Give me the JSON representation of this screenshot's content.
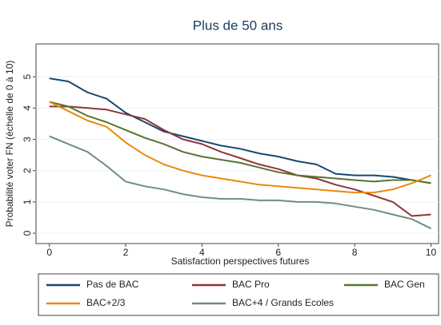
{
  "chart_data": {
    "type": "line",
    "title": "Plus de 50 ans",
    "x_label": "Satisfaction perspectives futures",
    "y_label": "Probabilité voter FN (échelle de 0 à 10)",
    "x": [
      0,
      0.5,
      1,
      1.5,
      2,
      2.5,
      3,
      3.5,
      4,
      4.5,
      5,
      5.5,
      6,
      6.5,
      7,
      7.5,
      8,
      8.5,
      9,
      9.5,
      10
    ],
    "series": [
      {
        "name": "Pas de BAC",
        "color": "#1a476f",
        "values": [
          4.95,
          4.85,
          4.5,
          4.3,
          3.85,
          3.55,
          3.25,
          3.1,
          2.95,
          2.8,
          2.7,
          2.55,
          2.45,
          2.3,
          2.2,
          1.9,
          1.85,
          1.85,
          1.8,
          1.7,
          1.6
        ]
      },
      {
        "name": "BAC Pro",
        "color": "#90353b",
        "values": [
          4.05,
          4.05,
          4.0,
          3.95,
          3.8,
          3.65,
          3.3,
          3.0,
          2.85,
          2.6,
          2.4,
          2.2,
          2.05,
          1.85,
          1.75,
          1.55,
          1.4,
          1.2,
          1.0,
          0.55,
          0.6
        ]
      },
      {
        "name": "BAC Gen",
        "color": "#55752f",
        "values": [
          4.2,
          4.05,
          3.75,
          3.55,
          3.3,
          3.05,
          2.85,
          2.6,
          2.45,
          2.35,
          2.25,
          2.1,
          1.95,
          1.85,
          1.8,
          1.75,
          1.7,
          1.65,
          1.7,
          1.7,
          1.6
        ]
      },
      {
        "name": "BAC+2/3",
        "color": "#e8890c",
        "values": [
          4.2,
          3.9,
          3.6,
          3.4,
          2.9,
          2.5,
          2.2,
          2.0,
          1.85,
          1.75,
          1.65,
          1.55,
          1.5,
          1.45,
          1.4,
          1.35,
          1.3,
          1.3,
          1.4,
          1.6,
          1.85
        ]
      },
      {
        "name": "BAC+4 / Grands Ecoles",
        "color": "#6e8e84",
        "values": [
          3.1,
          2.85,
          2.6,
          2.15,
          1.65,
          1.5,
          1.4,
          1.25,
          1.15,
          1.1,
          1.1,
          1.05,
          1.05,
          1.0,
          1.0,
          0.95,
          0.85,
          0.75,
          0.6,
          0.45,
          0.15
        ]
      }
    ],
    "xlim": [
      -0.35,
      10.2
    ],
    "ylim": [
      -0.33,
      6.05
    ],
    "xticks": [
      0,
      2,
      4,
      6,
      8,
      10
    ],
    "yticks": [
      0,
      1,
      2,
      3,
      4,
      5
    ],
    "grid": true
  }
}
